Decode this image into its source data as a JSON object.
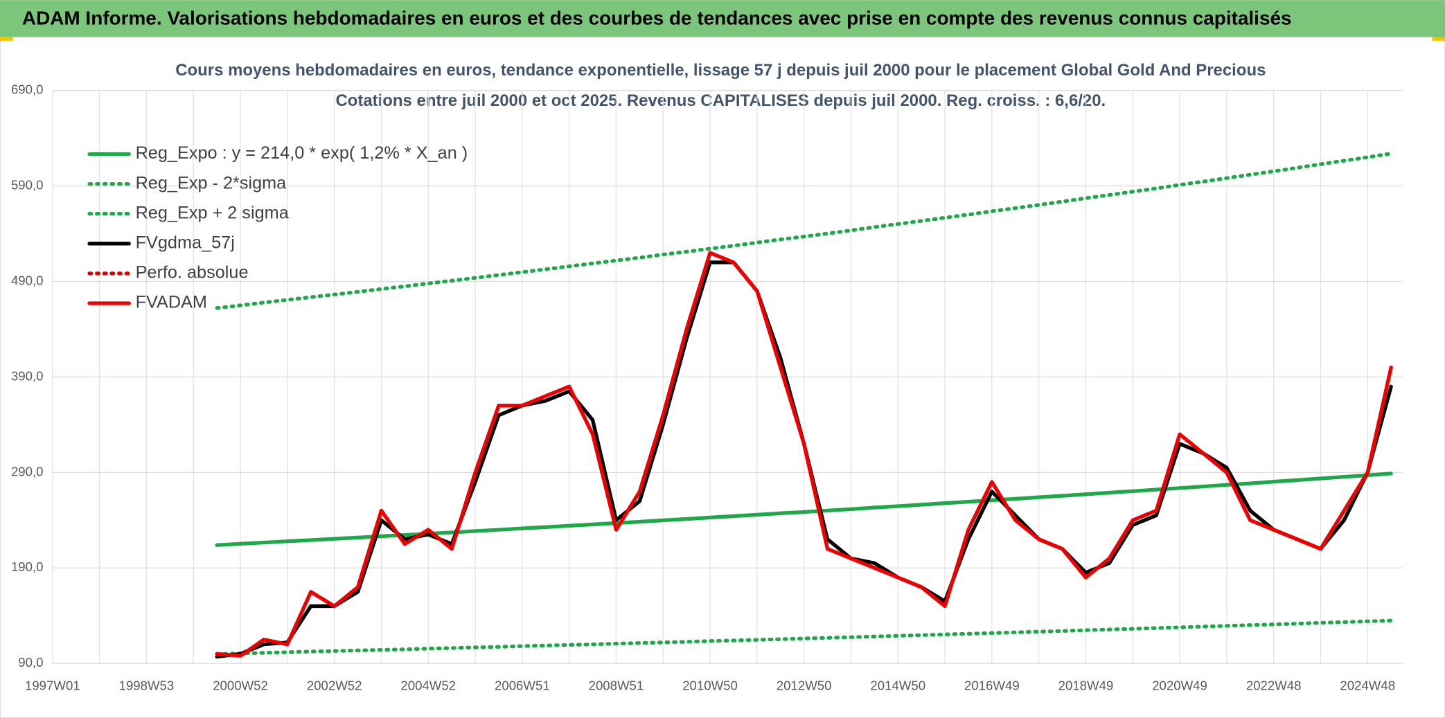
{
  "header": {
    "title": "ADAM Informe. Valorisations hebdomadaires en euros et des courbes de tendances avec prise en compte des revenus connus capitalisés"
  },
  "chart_data": {
    "type": "line",
    "title": "Cours moyens hebdomadaires en euros, tendance exponentielle, lissage 57 j depuis juil 2000 pour le placement Global Gold And Precious",
    "subtitle": "Cotations entre juil 2000 et oct 2025. Revenus CAPITALISES depuis juil 2000. Reg. croiss. : 6,6/20.",
    "categories": [
      "1997W01",
      null,
      null,
      null,
      "1998W53",
      null,
      null,
      null,
      "2000W52",
      null,
      null,
      null,
      "2002W52",
      null,
      null,
      null,
      "2004W52",
      null,
      null,
      null,
      "2006W51",
      null,
      null,
      null,
      "2008W51",
      null,
      null,
      null,
      "2010W50",
      null,
      null,
      null,
      "2012W50",
      null,
      null,
      null,
      "2014W50",
      null,
      null,
      null,
      "2016W49",
      null,
      null,
      null,
      "2018W49",
      null,
      null,
      null,
      "2020W49",
      null,
      null,
      null,
      "2022W48",
      null,
      null,
      null,
      "2024W48",
      null
    ],
    "ylim": [
      90,
      690
    ],
    "yticks": [
      {
        "value": 90,
        "label": "90,0"
      },
      {
        "value": 190,
        "label": "190,0"
      },
      {
        "value": 290,
        "label": "290,0"
      },
      {
        "value": 390,
        "label": "390,0"
      },
      {
        "value": 490,
        "label": "490,0"
      },
      {
        "value": 590,
        "label": "590,0"
      },
      {
        "value": 690,
        "label": "690,0"
      }
    ],
    "grid": true,
    "legend": "top-left",
    "series": [
      {
        "name": "Reg_Expo : y = 214,0 * exp( 1,2% *  X_an )",
        "color": "#1fa84a",
        "style": "solid",
        "values": [
          null,
          null,
          null,
          null,
          null,
          null,
          null,
          214.0,
          215.3,
          216.6,
          217.9,
          219.2,
          220.5,
          221.8,
          223.2,
          224.5,
          225.9,
          227.2,
          228.6,
          230.0,
          231.4,
          232.8,
          234.2,
          235.6,
          237.0,
          238.4,
          239.9,
          241.3,
          242.8,
          244.2,
          245.7,
          247.2,
          248.6,
          250.1,
          251.6,
          253.2,
          254.7,
          256.2,
          257.8,
          259.3,
          260.9,
          262.4,
          264.0,
          265.6,
          267.2,
          268.8,
          270.4,
          272.0,
          273.7,
          275.3,
          277.0,
          278.6,
          280.3,
          282.0,
          283.7,
          285.4,
          287.1,
          288.9
        ]
      },
      {
        "name": "Reg_Exp - 2*sigma",
        "color": "#1fa84a",
        "style": "dotted",
        "values": [
          null,
          null,
          null,
          null,
          null,
          null,
          null,
          99.9,
          100.5,
          101.1,
          101.8,
          102.4,
          103.0,
          103.6,
          104.2,
          104.8,
          105.5,
          106.1,
          106.8,
          107.4,
          108.1,
          108.7,
          109.4,
          110.0,
          110.7,
          111.3,
          112.0,
          112.7,
          113.4,
          114.0,
          114.7,
          115.4,
          116.1,
          116.8,
          117.5,
          118.2,
          118.9,
          119.6,
          120.4,
          121.1,
          121.8,
          122.5,
          123.3,
          124.0,
          124.8,
          125.5,
          126.3,
          127.0,
          127.8,
          128.6,
          129.4,
          130.1,
          130.9,
          131.7,
          132.5,
          133.3,
          134.1,
          134.9
        ]
      },
      {
        "name": "Reg_Exp + 2 sigma",
        "color": "#1fa84a",
        "style": "dotted",
        "values": [
          null,
          null,
          null,
          null,
          null,
          null,
          null,
          462.2,
          465.0,
          467.9,
          470.7,
          473.5,
          476.3,
          479.1,
          482.1,
          484.9,
          487.9,
          490.8,
          493.8,
          496.8,
          499.8,
          502.8,
          505.9,
          508.9,
          511.9,
          514.9,
          518.2,
          521.2,
          524.4,
          527.5,
          530.7,
          534.0,
          537.0,
          540.2,
          543.5,
          546.9,
          550.2,
          553.4,
          556.8,
          560.1,
          563.5,
          566.8,
          570.2,
          573.7,
          577.2,
          580.6,
          584.1,
          587.5,
          591.2,
          594.6,
          598.3,
          601.8,
          605.4,
          609.1,
          612.8,
          616.5,
          620.1,
          624.0
        ]
      },
      {
        "name": "FVgdma_57j",
        "color": "#000000",
        "style": "solid",
        "values": [
          null,
          null,
          null,
          null,
          null,
          null,
          null,
          97,
          100,
          110,
          112,
          150,
          150,
          165,
          240,
          220,
          225,
          215,
          280,
          350,
          360,
          365,
          375,
          345,
          240,
          260,
          340,
          430,
          510,
          510,
          480,
          410,
          320,
          220,
          200,
          195,
          180,
          170,
          155,
          220,
          270,
          245,
          220,
          210,
          185,
          195,
          235,
          245,
          320,
          310,
          295,
          250,
          230,
          220,
          210,
          240,
          290,
          380
        ]
      },
      {
        "name": "Perfo. absolue",
        "color": "#e00000",
        "style": "dotted",
        "values": [
          null,
          null,
          null,
          null,
          null,
          null,
          null,
          null,
          null,
          null,
          null,
          null,
          null,
          null,
          null,
          null,
          null,
          null,
          null,
          null,
          null,
          null,
          null,
          null,
          null,
          null,
          null,
          null,
          null,
          null,
          null,
          null,
          null,
          null,
          null,
          null,
          null,
          null,
          null,
          null,
          null,
          null,
          null,
          null,
          null,
          null,
          null,
          null,
          null,
          null,
          null,
          null,
          null,
          null,
          null,
          null,
          null,
          null
        ]
      },
      {
        "name": "FVADAM",
        "color": "#ee0000",
        "style": "solid",
        "values": [
          null,
          null,
          null,
          null,
          null,
          null,
          null,
          100,
          98,
          115,
          110,
          165,
          150,
          170,
          250,
          215,
          230,
          210,
          290,
          360,
          360,
          370,
          380,
          330,
          230,
          270,
          350,
          440,
          520,
          510,
          480,
          400,
          320,
          210,
          200,
          190,
          180,
          170,
          150,
          230,
          280,
          240,
          220,
          210,
          180,
          200,
          240,
          250,
          330,
          310,
          290,
          240,
          230,
          220,
          210,
          250,
          290,
          400
        ]
      }
    ]
  }
}
